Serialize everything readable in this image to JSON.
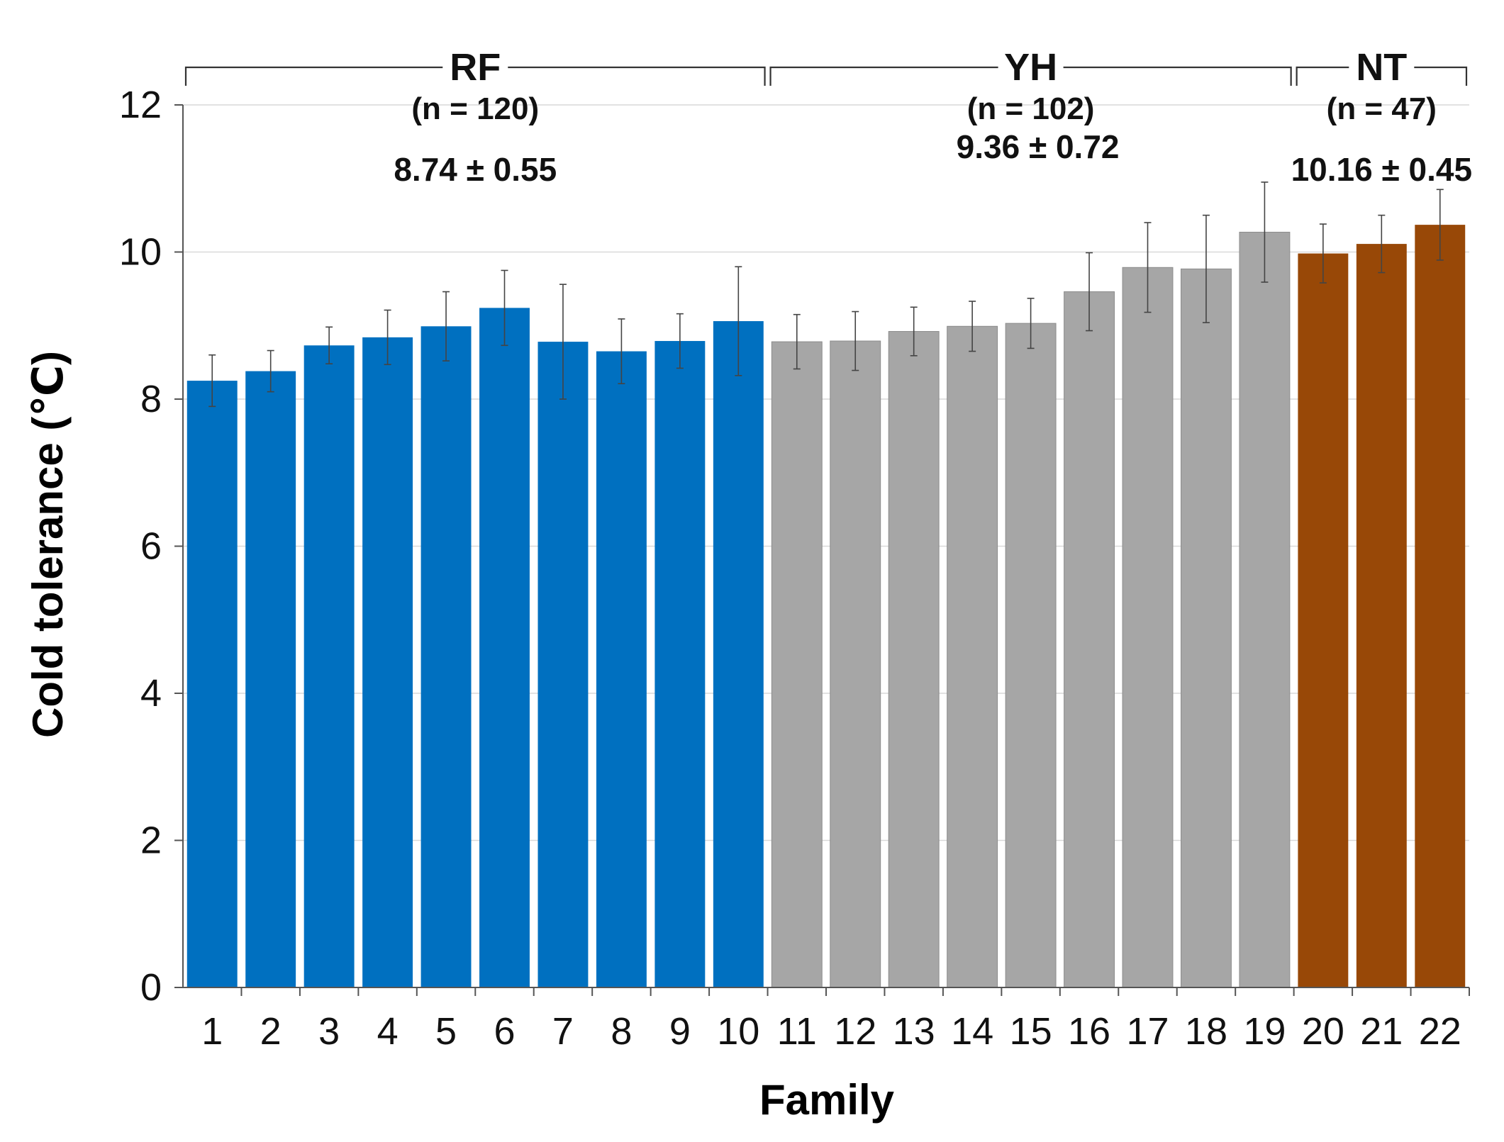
{
  "chart_data": {
    "type": "bar",
    "title": "",
    "xlabel": "Family",
    "ylabel": "Cold tolerance (℃)",
    "ylim": [
      0,
      12
    ],
    "yticks": [
      0,
      2,
      4,
      6,
      8,
      10,
      12
    ],
    "grid": true,
    "categories": [
      "1",
      "2",
      "3",
      "4",
      "5",
      "6",
      "7",
      "8",
      "9",
      "10",
      "11",
      "12",
      "13",
      "14",
      "15",
      "16",
      "17",
      "18",
      "19",
      "20",
      "21",
      "22"
    ],
    "values": [
      8.25,
      8.38,
      8.73,
      8.84,
      8.99,
      9.24,
      8.78,
      8.65,
      8.79,
      9.06,
      8.78,
      8.79,
      8.92,
      8.99,
      9.03,
      9.46,
      9.79,
      9.77,
      10.27,
      9.98,
      10.11,
      10.37
    ],
    "errors": [
      0.35,
      0.28,
      0.25,
      0.37,
      0.47,
      0.51,
      0.78,
      0.44,
      0.37,
      0.74,
      0.37,
      0.4,
      0.33,
      0.34,
      0.34,
      0.53,
      0.61,
      0.73,
      0.68,
      0.4,
      0.39,
      0.48
    ],
    "groups": [
      {
        "name": "RF",
        "n_label": "(n = 120)",
        "start": 0,
        "end": 9,
        "color": "#0070c0",
        "mean_label": "8.74 ± 0.55"
      },
      {
        "name": "YH",
        "n_label": "(n = 102)",
        "start": 10,
        "end": 18,
        "color": "#a6a6a6",
        "mean_label": "9.36 ± 0.72"
      },
      {
        "name": "NT",
        "n_label": "(n = 47)",
        "start": 19,
        "end": 21,
        "color": "#984807",
        "mean_label": "10.16 ± 0.45"
      }
    ]
  }
}
